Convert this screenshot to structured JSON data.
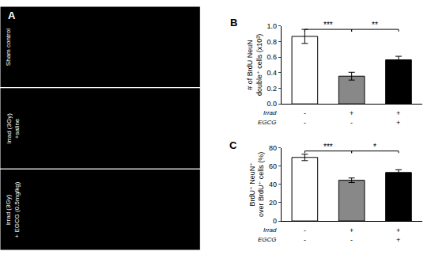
{
  "chart_data": [
    {
      "type": "image",
      "title": "A",
      "annotations": [
        "Sham control",
        "Irrad (3Gy)\n+saline",
        "Irrad (3Gy)\n+ EGCG (0.5mg/kg)"
      ]
    },
    {
      "type": "bar",
      "title": "B",
      "categories": [
        "-\n-",
        "+\n-",
        "+\n+"
      ],
      "xlabel": "Irrad\nEGCG",
      "values": [
        0.865,
        0.355,
        0.565
      ],
      "errors": [
        0.09,
        0.05,
        0.045
      ],
      "colors": [
        "white",
        "#888888",
        "black"
      ],
      "ylabel": "# of BrdU NeuN\ndouble⁺ cells (x10³)",
      "ylim": [
        0,
        1.0
      ],
      "yticks": [
        {
          "value": 0,
          "label": "0.0"
        },
        0.2,
        0.4,
        0.6,
        0.8,
        {
          "value": 1.0,
          "label": "1.0"
        }
      ],
      "grid": false,
      "annotations": [
        {
          "text": "***",
          "x1": 0,
          "x2": 1,
          "y": 0.955
        },
        {
          "text": "**",
          "x1": 1,
          "x2": 2,
          "y": 0.955
        }
      ]
    },
    {
      "type": "bar",
      "title": "C",
      "categories": [
        "-\n-",
        "+\n-",
        "+\n+"
      ],
      "xlabel": "Irrad\nEGCG",
      "values": [
        69.5,
        44.5,
        53.0
      ],
      "errors": [
        3.5,
        2.5,
        3.0
      ],
      "colors": [
        "white",
        "#888888",
        "black"
      ],
      "ylabel": "BrdU⁺ NeuN⁺\nover BrdU⁺ cells (%)",
      "ylim": [
        0,
        80
      ],
      "yticks": [
        0,
        20,
        40,
        60,
        80
      ],
      "grid": false,
      "annotations": [
        {
          "text": "***",
          "x1": 0,
          "x2": 1,
          "y": 76.5
        },
        {
          "text": "*",
          "x1": 1,
          "x2": 2,
          "y": 76.5
        }
      ]
    }
  ]
}
